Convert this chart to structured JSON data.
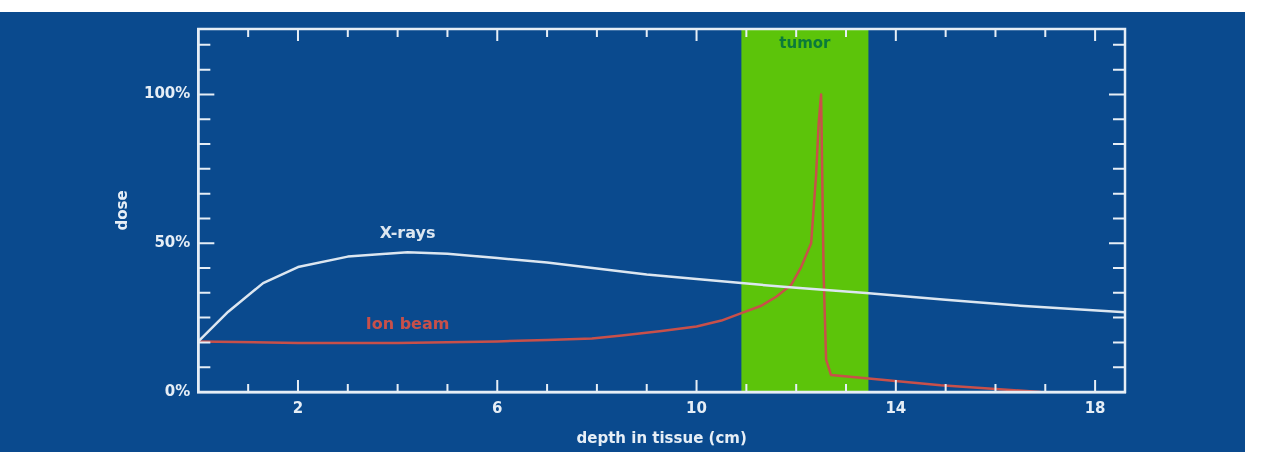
{
  "chart_data": {
    "type": "line",
    "xlabel": "depth in tissue (cm)",
    "ylabel": "dose",
    "xlim": [
      0,
      18.6
    ],
    "xticks": [
      {
        "value": 1,
        "label": null
      },
      {
        "value": 2,
        "label": "2"
      },
      {
        "value": 3,
        "label": null
      },
      {
        "value": 4,
        "label": null
      },
      {
        "value": 5,
        "label": null
      },
      {
        "value": 6,
        "label": "6"
      },
      {
        "value": 7,
        "label": null
      },
      {
        "value": 8,
        "label": null
      },
      {
        "value": 9,
        "label": null
      },
      {
        "value": 10,
        "label": "10"
      },
      {
        "value": 11,
        "label": null
      },
      {
        "value": 12,
        "label": null
      },
      {
        "value": 13,
        "label": null
      },
      {
        "value": 14,
        "label": "14"
      },
      {
        "value": 15,
        "label": null
      },
      {
        "value": 16,
        "label": null
      },
      {
        "value": 17,
        "label": null
      },
      {
        "value": 18,
        "label": "18"
      }
    ],
    "ylim": [
      0,
      122
    ],
    "yticks": [
      {
        "value": 0,
        "label": "0%"
      },
      {
        "value": 8.33,
        "label": null
      },
      {
        "value": 16.67,
        "label": null
      },
      {
        "value": 25,
        "label": null
      },
      {
        "value": 33.33,
        "label": null
      },
      {
        "value": 41.67,
        "label": null
      },
      {
        "value": 50,
        "label": "50%"
      },
      {
        "value": 58.33,
        "label": null
      },
      {
        "value": 66.67,
        "label": null
      },
      {
        "value": 75,
        "label": null
      },
      {
        "value": 83.33,
        "label": null
      },
      {
        "value": 91.67,
        "label": null
      },
      {
        "value": 100,
        "label": "100%"
      },
      {
        "value": 108.33,
        "label": null
      },
      {
        "value": 116.67,
        "label": null
      }
    ],
    "grid": false,
    "legend": false,
    "marker": "none",
    "line_style": "solid",
    "bands": [
      {
        "axis": "x",
        "from": 10.9,
        "to": 13.45,
        "label": "tumor",
        "color": "#5cc40a"
      }
    ],
    "series": [
      {
        "name": "X-rays",
        "color": "#dce6f0",
        "x": [
          0,
          0.6,
          1.3,
          2,
          3,
          4.2,
          5,
          6,
          7,
          8,
          9,
          10,
          10.9,
          12,
          13.4,
          15,
          16.5,
          18.6
        ],
        "values": [
          17,
          27,
          36.6,
          42,
          45.5,
          47,
          46.5,
          45,
          43.5,
          41.5,
          39.5,
          38,
          36.6,
          35,
          33.3,
          31,
          29,
          26.8
        ]
      },
      {
        "name": "Ion beam",
        "color": "#c8504a",
        "x": [
          0,
          2,
          4,
          6,
          7,
          7.9,
          8.5,
          9.3,
          10,
          10.5,
          10.9,
          11.3,
          11.6,
          11.9,
          12.1,
          12.3,
          12.4,
          12.45,
          12.5,
          12.55,
          12.6,
          12.7,
          13.4,
          14.9,
          16.9
        ],
        "values": [
          17,
          16.5,
          16.5,
          17,
          17.5,
          18,
          19,
          20.5,
          22,
          24,
          26.5,
          29,
          32,
          36,
          42,
          50,
          73,
          90,
          100,
          40,
          11,
          5.7,
          4.6,
          2.3,
          0
        ]
      }
    ]
  }
}
